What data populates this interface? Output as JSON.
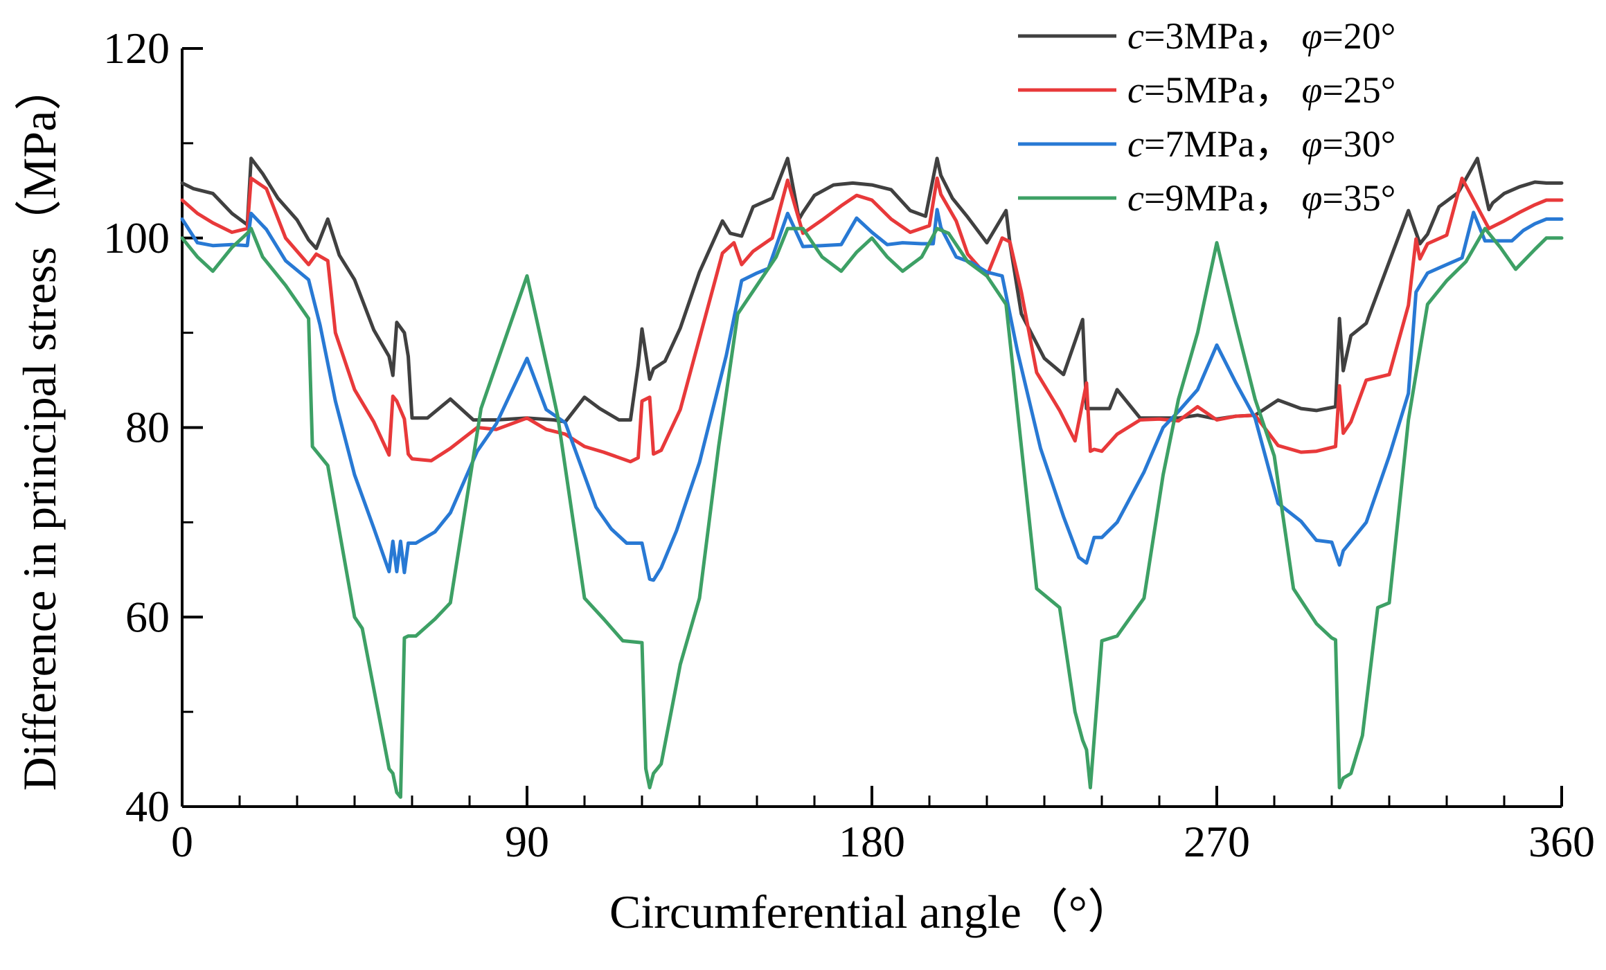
{
  "chart_data": {
    "type": "line",
    "title": "",
    "xlabel": "Circumferential angle（°）",
    "ylabel": "Difference in principal stress（MPa）",
    "xlim": [
      0,
      360
    ],
    "ylim": [
      40,
      120
    ],
    "xticks": [
      0,
      90,
      180,
      270,
      360
    ],
    "xtick_labels": [
      "0",
      "90",
      "180",
      "270",
      "360"
    ],
    "yticks": [
      40,
      60,
      80,
      100,
      120
    ],
    "ytick_labels": [
      "40",
      "60",
      "80",
      "100",
      "120"
    ],
    "grid": false,
    "legend_position": "top-right",
    "series": [
      {
        "name": "c=3MPa，φ=20°",
        "legend": {
          "c": "3",
          "phi": "20"
        },
        "color": "#404040",
        "x": [
          0,
          3,
          8,
          13,
          17,
          18,
          21,
          25,
          30,
          33,
          35,
          38,
          41,
          45,
          50,
          54,
          55,
          56,
          58,
          59,
          60,
          64,
          70,
          76,
          82,
          90,
          97,
          100,
          105,
          109,
          114,
          117,
          119,
          120,
          122,
          123,
          126,
          130,
          135,
          141,
          143,
          146,
          149,
          154,
          158,
          161,
          162,
          165,
          170,
          175,
          180,
          185,
          190,
          194,
          197,
          198,
          201,
          205,
          210,
          215,
          216,
          219,
          225,
          230,
          235,
          236,
          238,
          239,
          242,
          244,
          250,
          255,
          260,
          265,
          270,
          275,
          280,
          286,
          292,
          296,
          301,
          302,
          303,
          305,
          309,
          315,
          320,
          323,
          325,
          328,
          333,
          338,
          341,
          342,
          345,
          349,
          353,
          356,
          360
        ],
        "y": [
          105.8,
          105.2,
          104.7,
          102.6,
          101.4,
          108.4,
          106.8,
          104.2,
          101.9,
          99.8,
          98.9,
          102.0,
          98.2,
          95.6,
          90.3,
          87.5,
          85.5,
          91.1,
          90.0,
          87.5,
          81.0,
          81.0,
          83.0,
          80.8,
          80.8,
          81.0,
          80.8,
          80.6,
          83.2,
          82.0,
          80.8,
          80.8,
          86.6,
          90.4,
          85.1,
          86.2,
          87.0,
          90.5,
          96.4,
          101.8,
          100.5,
          100.2,
          103.3,
          104.2,
          108.4,
          102.0,
          102.7,
          104.5,
          105.6,
          105.8,
          105.6,
          105.1,
          102.9,
          102.3,
          108.4,
          106.6,
          104.2,
          102.2,
          99.5,
          102.9,
          99.5,
          92.0,
          87.3,
          85.6,
          91.4,
          82.0,
          82.0,
          82.0,
          82.0,
          84.0,
          81.0,
          81.0,
          81.0,
          81.3,
          80.9,
          81.2,
          81.3,
          82.9,
          82.0,
          81.8,
          82.2,
          91.5,
          86.0,
          89.7,
          91.0,
          97.5,
          102.9,
          99.4,
          100.4,
          103.3,
          104.8,
          108.4,
          103.0,
          103.7,
          104.7,
          105.4,
          105.9,
          105.8,
          105.8
        ]
      },
      {
        "name": "c=5MPa，φ=25°",
        "legend": {
          "c": "5",
          "phi": "25"
        },
        "color": "#e8393a",
        "x": [
          0,
          4,
          8,
          13,
          17,
          18,
          22,
          27,
          33,
          35,
          38,
          40,
          45,
          50,
          54,
          55,
          56,
          58,
          59,
          60,
          65,
          70,
          77,
          82,
          90,
          95,
          100,
          105,
          110,
          117,
          119,
          120,
          122,
          123,
          125,
          130,
          135,
          141,
          144,
          146,
          149,
          154,
          158,
          162,
          167,
          172,
          176,
          180,
          185,
          190,
          195,
          197,
          198,
          202,
          205,
          210,
          214,
          216,
          219,
          223,
          229,
          233,
          236,
          237,
          238,
          240,
          244,
          250,
          255,
          260,
          265,
          270,
          275,
          280,
          286,
          292,
          296,
          301,
          302,
          303,
          305,
          309,
          315,
          320,
          322,
          323,
          325,
          330,
          334,
          341,
          345,
          349,
          353,
          356,
          360
        ],
        "y": [
          104.0,
          102.6,
          101.6,
          100.6,
          101.0,
          106.3,
          105.2,
          100.0,
          97.2,
          98.3,
          97.6,
          90.0,
          84.0,
          80.6,
          77.1,
          83.3,
          82.8,
          80.9,
          77.2,
          76.7,
          76.5,
          77.8,
          80.0,
          79.8,
          81.0,
          79.8,
          79.3,
          78.0,
          77.4,
          76.4,
          76.8,
          82.8,
          83.2,
          77.2,
          77.6,
          81.9,
          89.4,
          98.4,
          99.5,
          97.2,
          98.6,
          100.0,
          106.1,
          100.5,
          101.9,
          103.4,
          104.5,
          104.0,
          102.0,
          100.6,
          101.3,
          106.3,
          104.6,
          101.8,
          98.3,
          96.0,
          100.0,
          99.6,
          94.3,
          85.8,
          81.8,
          78.6,
          84.7,
          77.5,
          77.7,
          77.5,
          79.3,
          80.8,
          80.9,
          80.7,
          82.2,
          80.8,
          81.2,
          81.3,
          78.1,
          77.4,
          77.5,
          78.0,
          84.4,
          79.4,
          80.6,
          85.0,
          85.6,
          92.9,
          99.9,
          97.8,
          99.4,
          100.3,
          106.3,
          101.0,
          101.8,
          102.7,
          103.5,
          104.0,
          104.0
        ]
      },
      {
        "name": "c=7MPa，φ=30°",
        "legend": {
          "c": "7",
          "phi": "30"
        },
        "color": "#2879d4",
        "x": [
          0,
          4,
          8,
          13,
          17,
          18,
          22,
          27,
          33,
          36,
          40,
          45,
          50,
          54,
          55,
          56,
          57,
          58,
          59,
          61,
          66,
          70,
          77,
          82,
          90,
          95,
          100,
          108,
          112,
          116,
          120,
          122,
          123,
          125,
          129,
          135,
          142,
          146,
          150,
          153,
          158,
          162,
          167,
          172,
          176,
          180,
          184,
          188,
          193,
          196,
          197,
          198,
          202,
          206,
          210,
          214,
          218,
          224,
          230,
          234,
          236,
          238,
          239,
          240,
          244,
          251,
          256,
          260,
          265,
          270,
          275,
          280,
          286,
          292,
          296,
          300,
          302,
          303,
          305,
          309,
          315,
          320,
          322,
          325,
          330,
          334,
          337,
          340,
          344,
          347,
          350,
          353,
          356,
          360
        ],
        "y": [
          102.0,
          99.5,
          99.2,
          99.3,
          99.2,
          102.6,
          100.9,
          97.6,
          95.6,
          90.8,
          82.8,
          75.0,
          69.4,
          64.8,
          68.0,
          64.8,
          68.0,
          64.7,
          67.8,
          67.8,
          69.0,
          71.0,
          77.5,
          80.4,
          87.3,
          81.9,
          80.5,
          71.6,
          69.3,
          67.8,
          67.8,
          64.0,
          63.9,
          65.2,
          69.1,
          76.3,
          87.6,
          95.5,
          96.3,
          96.8,
          102.6,
          99.1,
          99.2,
          99.3,
          102.1,
          100.6,
          99.3,
          99.5,
          99.4,
          99.4,
          103.0,
          101.1,
          98.0,
          97.4,
          96.4,
          96.0,
          88.0,
          77.8,
          70.6,
          66.3,
          65.7,
          68.4,
          68.4,
          68.4,
          70.0,
          75.3,
          80.0,
          81.7,
          84.0,
          88.7,
          84.7,
          81.0,
          72.0,
          70.1,
          68.1,
          67.9,
          65.5,
          67.0,
          68.0,
          70.0,
          77.0,
          83.6,
          94.3,
          96.3,
          97.2,
          97.9,
          102.7,
          99.7,
          99.7,
          99.7,
          100.8,
          101.5,
          102.0,
          102.0
        ]
      },
      {
        "name": "c=9MPa，φ=35°",
        "legend": {
          "c": "9",
          "phi": "35"
        },
        "color": "#3da065",
        "x": [
          0,
          4,
          8,
          13,
          17,
          18,
          21,
          27,
          33,
          34,
          38,
          45,
          47,
          54,
          55,
          56,
          57,
          58,
          59,
          61,
          66,
          70,
          78,
          90,
          96,
          98,
          105,
          110,
          115,
          120,
          121,
          122,
          123,
          125,
          130,
          135,
          140,
          145,
          150,
          155,
          158,
          162,
          167,
          172,
          176,
          180,
          184,
          188,
          193,
          197,
          200,
          205,
          210,
          215,
          219,
          223,
          229,
          233,
          235,
          236,
          237,
          240,
          244,
          251,
          256,
          260,
          265,
          270,
          275,
          280,
          285,
          290,
          296,
          300,
          301,
          302,
          303,
          305,
          308,
          312,
          315,
          320,
          325,
          330,
          335,
          340,
          344,
          348,
          353,
          356,
          360
        ],
        "y": [
          100.0,
          98.0,
          96.5,
          99.0,
          100.5,
          101.0,
          98.0,
          95.0,
          91.5,
          78.0,
          76.0,
          60.0,
          58.8,
          44.0,
          43.5,
          41.5,
          41.0,
          57.8,
          58.0,
          58.0,
          59.8,
          61.5,
          82.0,
          96.0,
          85.0,
          81.2,
          62.0,
          59.8,
          57.5,
          57.3,
          44.0,
          42.0,
          43.5,
          44.5,
          55.0,
          62.0,
          78.0,
          92.0,
          95.0,
          98.0,
          101.0,
          101.0,
          98.0,
          96.5,
          98.5,
          100.0,
          98.0,
          96.5,
          98.0,
          101.0,
          100.5,
          97.5,
          96.0,
          93.0,
          78.0,
          63.0,
          61.0,
          50.0,
          47.0,
          46.0,
          42.0,
          57.5,
          58.0,
          62.0,
          75.0,
          83.0,
          90.0,
          99.5,
          91.0,
          83.0,
          77.0,
          63.0,
          59.3,
          57.8,
          57.6,
          42.0,
          43.0,
          43.5,
          47.5,
          61.0,
          61.5,
          80.8,
          93.0,
          95.5,
          97.5,
          101.0,
          99.0,
          96.7,
          98.8,
          100.0,
          100.0
        ]
      }
    ]
  }
}
